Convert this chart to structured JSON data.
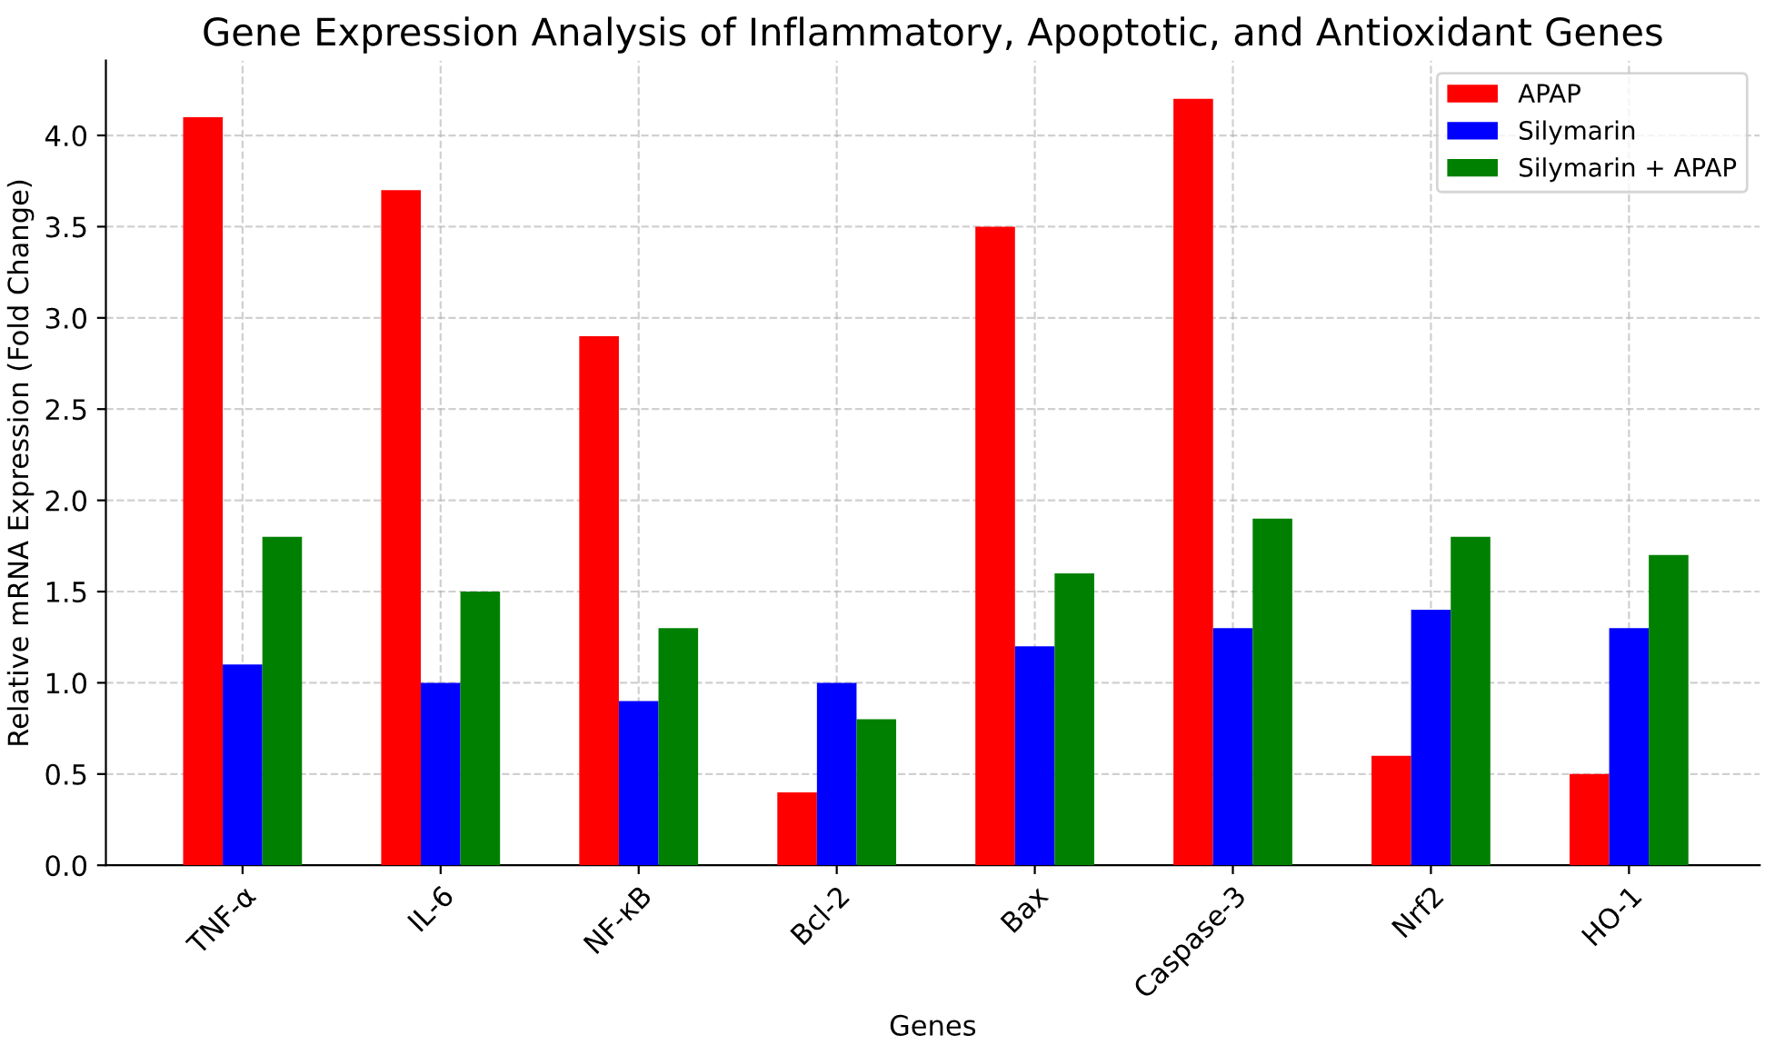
{
  "chart_data": {
    "type": "bar",
    "title": "Gene Expression Analysis of Inflammatory, Apoptotic, and Antioxidant Genes",
    "xlabel": "Genes",
    "ylabel": "Relative mRNA Expression (Fold Change)",
    "categories": [
      "TNF-α",
      "IL-6",
      "NF-κB",
      "Bcl-2",
      "Bax",
      "Caspase-3",
      "Nrf2",
      "HO-1"
    ],
    "series": [
      {
        "name": "APAP",
        "color": "#ff0000",
        "values": [
          4.1,
          3.7,
          2.9,
          0.4,
          3.5,
          4.2,
          0.6,
          0.5
        ]
      },
      {
        "name": "Silymarin",
        "color": "#0000ff",
        "values": [
          1.1,
          1.0,
          0.9,
          1.0,
          1.2,
          1.3,
          1.4,
          1.3
        ]
      },
      {
        "name": "Silymarin + APAP",
        "color": "#008000",
        "values": [
          1.8,
          1.5,
          1.3,
          0.8,
          1.6,
          1.9,
          1.8,
          1.7
        ]
      }
    ],
    "ylim": [
      0,
      4.41
    ],
    "yticks": [
      {
        "value": 0,
        "label": "0.0"
      },
      {
        "value": 0.5,
        "label": "0.5"
      },
      {
        "value": 1,
        "label": "1.0"
      },
      {
        "value": 1.5,
        "label": "1.5"
      },
      {
        "value": 2,
        "label": "2.0"
      },
      {
        "value": 2.5,
        "label": "2.5"
      },
      {
        "value": 3,
        "label": "3.0"
      },
      {
        "value": 3.5,
        "label": "3.5"
      },
      {
        "value": 4,
        "label": "4.0"
      }
    ],
    "grid": true,
    "legend": "top right"
  }
}
